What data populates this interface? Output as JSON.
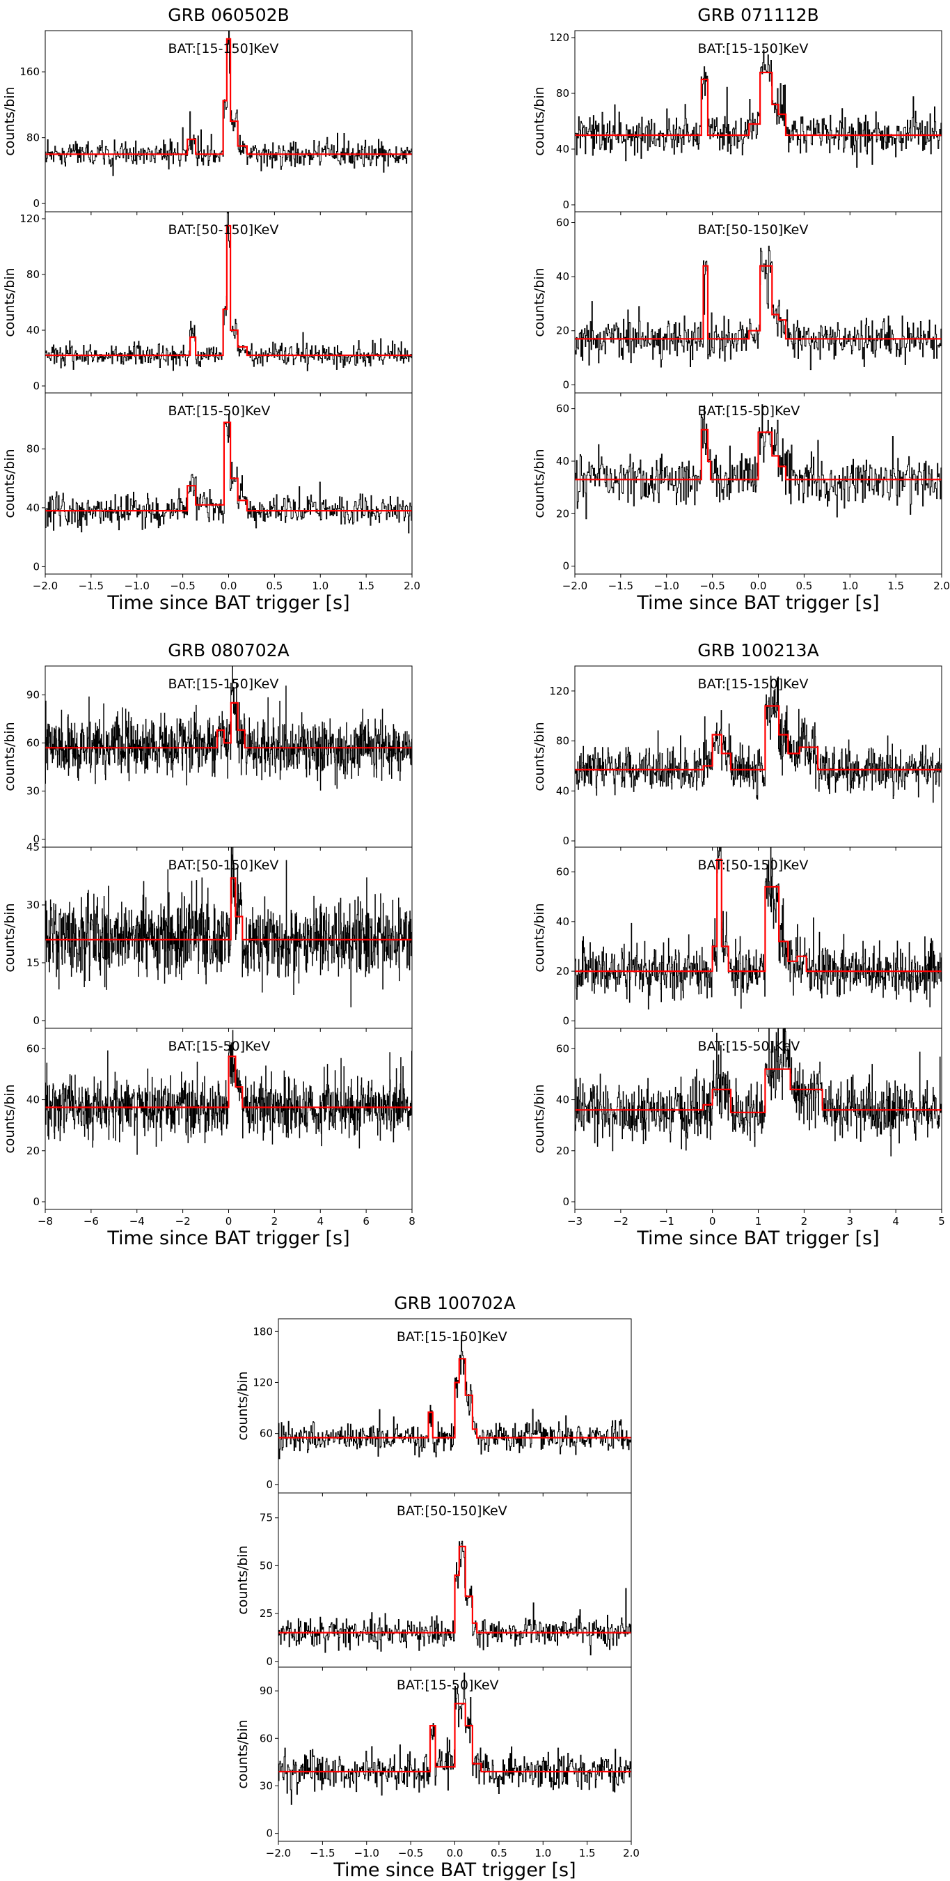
{
  "figure": {
    "xlabel": "Time since BAT trigger [s]",
    "ylabel": "counts/bin",
    "colors": {
      "data": "#000000",
      "model": "#ff0000"
    }
  },
  "chart_data": [
    {
      "type": "line",
      "title": "GRB 060502B",
      "xlabel": "Time since BAT trigger [s]",
      "xlim": [
        -2,
        2
      ],
      "xticks": [
        -2.0,
        -1.5,
        -1.0,
        -0.5,
        0.0,
        0.5,
        1.0,
        1.5,
        2.0
      ],
      "xtick_labels": [
        "−2.0",
        "−1.5",
        "−1.0",
        "−0.5",
        "0.0",
        "0.5",
        "1.0",
        "1.5",
        "2.0"
      ],
      "bin_width": 0.008,
      "panels": [
        {
          "band": "BAT:[15-150]KeV",
          "ylabel": "counts/bin",
          "ylim": [
            -10,
            210
          ],
          "yticks": [
            0,
            80,
            160
          ],
          "yticks_labels": [
            "0",
            "80",
            "160"
          ],
          "baseline": 60,
          "noise": 8,
          "blocks": [
            [
              -0.45,
              -0.36,
              78
            ],
            [
              -0.06,
              -0.02,
              125
            ],
            [
              -0.02,
              0.02,
              200
            ],
            [
              0.02,
              0.1,
              100
            ],
            [
              0.1,
              0.2,
              70
            ]
          ]
        },
        {
          "band": "BAT:[50-150]KeV",
          "ylabel": "counts/bin",
          "ylim": [
            -5,
            125
          ],
          "yticks": [
            0,
            40,
            80,
            120
          ],
          "yticks_labels": [
            "0",
            "40",
            "80",
            "120"
          ],
          "baseline": 22,
          "noise": 4,
          "blocks": [
            [
              -0.42,
              -0.36,
              35
            ],
            [
              -0.06,
              -0.02,
              55
            ],
            [
              -0.02,
              0.02,
              115
            ],
            [
              0.02,
              0.1,
              40
            ],
            [
              0.1,
              0.2,
              28
            ]
          ]
        },
        {
          "band": "BAT:[15-50]KeV",
          "ylabel": "counts/bin",
          "ylim": [
            -5,
            118
          ],
          "yticks": [
            0,
            40,
            80
          ],
          "yticks_labels": [
            "0",
            "40",
            "80"
          ],
          "baseline": 38,
          "noise": 5,
          "blocks": [
            [
              -0.45,
              -0.36,
              55
            ],
            [
              -0.36,
              -0.05,
              42
            ],
            [
              -0.05,
              0.02,
              98
            ],
            [
              0.02,
              0.1,
              60
            ],
            [
              0.1,
              0.2,
              45
            ]
          ]
        }
      ]
    },
    {
      "type": "line",
      "title": "GRB 071112B",
      "xlabel": "Time since BAT trigger [s]",
      "xlim": [
        -2,
        2
      ],
      "xticks": [
        -2.0,
        -1.5,
        -1.0,
        -0.5,
        0.0,
        0.5,
        1.0,
        1.5,
        2.0
      ],
      "xtick_labels": [
        "−2.0",
        "−1.5",
        "−1.0",
        "−0.5",
        "0.0",
        "0.5",
        "1.0",
        "1.5",
        "2.0"
      ],
      "bin_width": 0.008,
      "panels": [
        {
          "band": "BAT:[15-150]KeV",
          "ylabel": "counts/bin",
          "ylim": [
            -5,
            125
          ],
          "yticks": [
            0,
            40,
            80,
            120
          ],
          "yticks_labels": [
            "0",
            "40",
            "80",
            "120"
          ],
          "baseline": 50,
          "noise": 8,
          "blocks": [
            [
              -0.62,
              -0.55,
              90
            ],
            [
              -0.1,
              0.02,
              58
            ],
            [
              0.02,
              0.15,
              95
            ],
            [
              0.15,
              0.22,
              72
            ],
            [
              0.22,
              0.3,
              65
            ]
          ]
        },
        {
          "band": "BAT:[50-150]KeV",
          "ylabel": "counts/bin",
          "ylim": [
            -3,
            64
          ],
          "yticks": [
            0,
            20,
            40,
            60
          ],
          "yticks_labels": [
            "0",
            "20",
            "40",
            "60"
          ],
          "baseline": 17,
          "noise": 4,
          "blocks": [
            [
              -0.6,
              -0.55,
              44
            ],
            [
              -0.1,
              0.02,
              20
            ],
            [
              0.02,
              0.15,
              44
            ],
            [
              0.15,
              0.22,
              26
            ],
            [
              0.22,
              0.3,
              24
            ]
          ]
        },
        {
          "band": "BAT:[15-50]KeV",
          "ylabel": "counts/bin",
          "ylim": [
            -3,
            66
          ],
          "yticks": [
            0,
            20,
            40,
            60
          ],
          "yticks_labels": [
            "0",
            "20",
            "40",
            "60"
          ],
          "baseline": 33,
          "noise": 5,
          "blocks": [
            [
              -0.62,
              -0.55,
              52
            ],
            [
              -0.55,
              -0.52,
              40
            ],
            [
              0.0,
              0.15,
              51
            ],
            [
              0.15,
              0.22,
              42
            ],
            [
              0.22,
              0.3,
              38
            ]
          ]
        }
      ]
    },
    {
      "type": "line",
      "title": "GRB 080702A",
      "xlabel": "Time since BAT trigger [s]",
      "xlim": [
        -8,
        8
      ],
      "xticks": [
        -8,
        -6,
        -4,
        -2,
        0,
        2,
        4,
        6,
        8
      ],
      "xtick_labels": [
        "−8",
        "−6",
        "−4",
        "−2",
        "0",
        "2",
        "4",
        "6",
        "8"
      ],
      "bin_width": 0.016,
      "panels": [
        {
          "band": "BAT:[15-150]KeV",
          "ylabel": "counts/bin",
          "ylim": [
            -5,
            108
          ],
          "yticks": [
            0,
            30,
            60,
            90
          ],
          "yticks_labels": [
            "0",
            "30",
            "60",
            "90"
          ],
          "baseline": 57,
          "noise": 9,
          "blocks": [
            [
              -0.5,
              -0.2,
              68
            ],
            [
              -0.2,
              0.1,
              60
            ],
            [
              0.1,
              0.4,
              85
            ],
            [
              0.4,
              0.7,
              68
            ]
          ]
        },
        {
          "band": "BAT:[50-150]KeV",
          "ylabel": "counts/bin",
          "ylim": [
            -2,
            45
          ],
          "yticks": [
            0,
            15,
            30,
            45
          ],
          "yticks_labels": [
            "0",
            "15",
            "30",
            "45"
          ],
          "baseline": 21,
          "noise": 5,
          "blocks": [
            [
              0.1,
              0.3,
              37
            ],
            [
              0.3,
              0.6,
              27
            ]
          ]
        },
        {
          "band": "BAT:[15-50]KeV",
          "ylabel": "counts/bin",
          "ylim": [
            -3,
            68
          ],
          "yticks": [
            0,
            20,
            40,
            60
          ],
          "yticks_labels": [
            "0",
            "20",
            "40",
            "60"
          ],
          "baseline": 37,
          "noise": 6,
          "blocks": [
            [
              0.0,
              0.3,
              57
            ],
            [
              0.3,
              0.6,
              45
            ]
          ]
        }
      ]
    },
    {
      "type": "line",
      "title": "GRB 100213A",
      "xlabel": "Time since BAT trigger [s]",
      "xlim": [
        -3,
        5
      ],
      "xticks": [
        -3,
        -2,
        -1,
        0,
        1,
        2,
        3,
        4,
        5
      ],
      "xtick_labels": [
        "−3",
        "−2",
        "−1",
        "0",
        "1",
        "2",
        "3",
        "4",
        "5"
      ],
      "bin_width": 0.01,
      "panels": [
        {
          "band": "BAT:[15-150]KeV",
          "ylabel": "counts/bin",
          "ylim": [
            -5,
            140
          ],
          "yticks": [
            0,
            40,
            80,
            120
          ],
          "yticks_labels": [
            "0",
            "40",
            "80",
            "120"
          ],
          "baseline": 57,
          "noise": 9,
          "blocks": [
            [
              -0.2,
              0.0,
              60
            ],
            [
              0.0,
              0.2,
              85
            ],
            [
              0.2,
              0.4,
              70
            ],
            [
              1.15,
              1.45,
              108
            ],
            [
              1.45,
              1.65,
              85
            ],
            [
              1.65,
              1.9,
              70
            ],
            [
              1.9,
              2.3,
              75
            ]
          ]
        },
        {
          "band": "BAT:[50-150]KeV",
          "ylabel": "counts/bin",
          "ylim": [
            -3,
            70
          ],
          "yticks": [
            0,
            20,
            40,
            60
          ],
          "yticks_labels": [
            "0",
            "20",
            "40",
            "60"
          ],
          "baseline": 20,
          "noise": 5,
          "blocks": [
            [
              0.0,
              0.1,
              30
            ],
            [
              0.1,
              0.2,
              65
            ],
            [
              0.2,
              0.35,
              30
            ],
            [
              1.15,
              1.45,
              54
            ],
            [
              1.45,
              1.65,
              32
            ],
            [
              1.65,
              1.85,
              24
            ],
            [
              1.85,
              2.05,
              26
            ]
          ]
        },
        {
          "band": "BAT:[15-50]KeV",
          "ylabel": "counts/bin",
          "ylim": [
            -3,
            68
          ],
          "yticks": [
            0,
            20,
            40,
            60
          ],
          "yticks_labels": [
            "0",
            "20",
            "40",
            "60"
          ],
          "baseline": 36,
          "noise": 6,
          "blocks": [
            [
              -0.2,
              0.0,
              38
            ],
            [
              0.0,
              0.4,
              44
            ],
            [
              0.4,
              1.15,
              35
            ],
            [
              1.15,
              1.7,
              52
            ],
            [
              1.7,
              2.4,
              44
            ]
          ]
        }
      ]
    },
    {
      "type": "line",
      "title": "GRB 100702A",
      "xlabel": "Time since BAT trigger [s]",
      "xlim": [
        -2,
        2
      ],
      "xticks": [
        -2.0,
        -1.5,
        -1.0,
        -0.5,
        0.0,
        0.5,
        1.0,
        1.5,
        2.0
      ],
      "xtick_labels": [
        "−2.0",
        "−1.5",
        "−1.0",
        "−0.5",
        "0.0",
        "0.5",
        "1.0",
        "1.5",
        "2.0"
      ],
      "bin_width": 0.008,
      "panels": [
        {
          "band": "BAT:[15-150]KeV",
          "ylabel": "counts/bin",
          "ylim": [
            -10,
            195
          ],
          "yticks": [
            0,
            60,
            120,
            180
          ],
          "yticks_labels": [
            "0",
            "60",
            "120",
            "180"
          ],
          "baseline": 55,
          "noise": 9,
          "blocks": [
            [
              -0.3,
              -0.25,
              85
            ],
            [
              -0.25,
              0.0,
              55
            ],
            [
              0.0,
              0.05,
              120
            ],
            [
              0.05,
              0.12,
              148
            ],
            [
              0.12,
              0.2,
              105
            ],
            [
              0.2,
              0.25,
              65
            ]
          ]
        },
        {
          "band": "BAT:[50-150]KeV",
          "ylabel": "counts/bin",
          "ylim": [
            -3,
            88
          ],
          "yticks": [
            0,
            25,
            50,
            75
          ],
          "yticks_labels": [
            "0",
            "25",
            "50",
            "75"
          ],
          "baseline": 15,
          "noise": 4,
          "blocks": [
            [
              0.0,
              0.05,
              45
            ],
            [
              0.05,
              0.12,
              60
            ],
            [
              0.12,
              0.2,
              34
            ],
            [
              0.2,
              0.25,
              20
            ]
          ]
        },
        {
          "band": "BAT:[15-50]KeV",
          "ylabel": "counts/bin",
          "ylim": [
            -5,
            105
          ],
          "yticks": [
            0,
            30,
            60,
            90
          ],
          "yticks_labels": [
            "0",
            "30",
            "60",
            "90"
          ],
          "baseline": 39,
          "noise": 6,
          "blocks": [
            [
              -0.28,
              -0.22,
              68
            ],
            [
              -0.22,
              0.0,
              42
            ],
            [
              0.0,
              0.12,
              82
            ],
            [
              0.12,
              0.2,
              68
            ],
            [
              0.2,
              0.3,
              44
            ]
          ]
        }
      ]
    }
  ]
}
